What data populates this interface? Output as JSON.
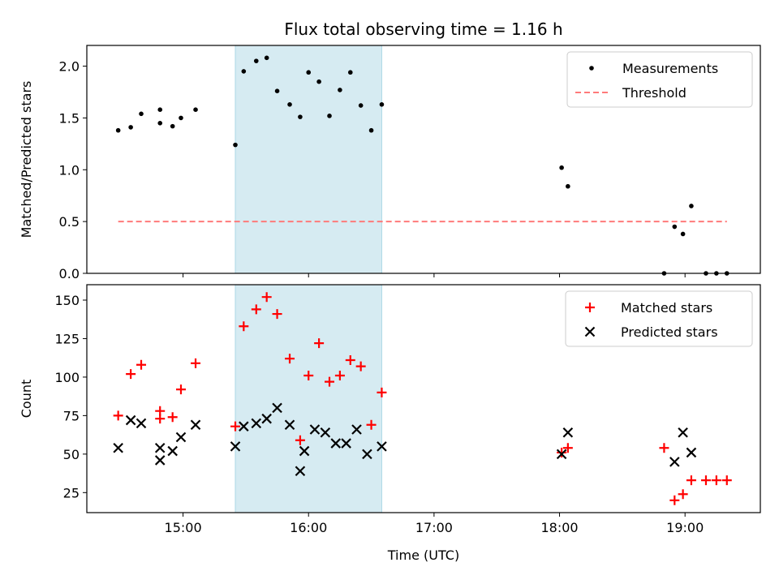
{
  "title": "Flux total observing time = 1.16 h",
  "chart_data": [
    {
      "type": "scatter",
      "ylabel": "Matched/Predicted stars",
      "ylim": [
        0,
        2.2
      ],
      "yticks": [
        "0.0",
        "0.5",
        "1.0",
        "1.5",
        "2.0"
      ],
      "xlim": [
        "14:14",
        "19:36"
      ],
      "highlight_span": {
        "x0": "15:25",
        "x1": "16:35",
        "color": "#add8e6"
      },
      "legend": {
        "placement": "top-right",
        "entries": [
          "Measurements",
          "Threshold"
        ]
      },
      "series": [
        {
          "name": "Measurements",
          "marker": "dot",
          "color": "#000000",
          "x": [
            "14:29",
            "14:35",
            "14:40",
            "14:49",
            "14:49",
            "14:55",
            "14:59",
            "15:06",
            "15:25",
            "15:29",
            "15:35",
            "15:40",
            "15:45",
            "15:51",
            "15:56",
            "16:00",
            "16:05",
            "16:10",
            "16:15",
            "16:20",
            "16:25",
            "16:30",
            "16:35",
            "18:01",
            "18:04",
            "18:50",
            "18:55",
            "18:59",
            "19:03",
            "19:10",
            "19:15",
            "19:20"
          ],
          "y": [
            1.38,
            1.41,
            1.54,
            1.58,
            1.45,
            1.42,
            1.5,
            1.58,
            1.24,
            1.95,
            2.05,
            2.08,
            1.76,
            1.63,
            1.51,
            1.94,
            1.85,
            1.52,
            1.77,
            1.94,
            1.62,
            1.38,
            1.63,
            1.02,
            0.84,
            0.0,
            0.45,
            0.38,
            0.65,
            0.0,
            0.0,
            0.0
          ]
        },
        {
          "name": "Threshold",
          "style": "dashed",
          "color": "#ff7a7a",
          "x": [
            "14:29",
            "19:20"
          ],
          "y": [
            0.5,
            0.5
          ]
        }
      ]
    },
    {
      "type": "scatter",
      "ylabel": "Count",
      "xlabel": "Time (UTC)",
      "ylim": [
        12,
        160
      ],
      "yticks": [
        "25",
        "50",
        "75",
        "100",
        "125",
        "150"
      ],
      "xlim": [
        "14:14",
        "19:36"
      ],
      "xticks": [
        "15:00",
        "16:00",
        "17:00",
        "18:00",
        "19:00"
      ],
      "highlight_span": {
        "x0": "15:25",
        "x1": "16:35",
        "color": "#add8e6"
      },
      "legend": {
        "placement": "top-right",
        "entries": [
          "Matched stars",
          "Predicted stars"
        ]
      },
      "series": [
        {
          "name": "Matched stars",
          "marker": "plus",
          "color": "#ff0000",
          "x": [
            "14:29",
            "14:35",
            "14:40",
            "14:49",
            "14:49",
            "14:55",
            "14:59",
            "15:06",
            "15:25",
            "15:29",
            "15:35",
            "15:40",
            "15:45",
            "15:51",
            "15:56",
            "16:00",
            "16:05",
            "16:10",
            "16:15",
            "16:20",
            "16:25",
            "16:30",
            "16:35",
            "18:01",
            "18:04",
            "18:50",
            "18:55",
            "18:59",
            "19:03",
            "19:10",
            "19:15",
            "19:20"
          ],
          "y": [
            75,
            102,
            108,
            73,
            78,
            74,
            92,
            109,
            68,
            133,
            144,
            152,
            141,
            112,
            59,
            101,
            122,
            97,
            101,
            111,
            107,
            69,
            90,
            51,
            54,
            54,
            20,
            24,
            33,
            33,
            33,
            33
          ]
        },
        {
          "name": "Predicted stars",
          "marker": "x",
          "color": "#000000",
          "x": [
            "14:29",
            "14:35",
            "14:40",
            "14:49",
            "14:49",
            "14:55",
            "14:59",
            "15:06",
            "15:25",
            "15:29",
            "15:35",
            "15:40",
            "15:45",
            "15:51",
            "15:56",
            "15:58",
            "16:03",
            "16:08",
            "16:13",
            "16:18",
            "16:23",
            "16:28",
            "16:35",
            "18:01",
            "18:04",
            "18:55",
            "18:59",
            "19:03"
          ],
          "y": [
            54,
            72,
            70,
            46,
            54,
            52,
            61,
            69,
            55,
            68,
            70,
            73,
            80,
            69,
            39,
            52,
            66,
            64,
            57,
            57,
            66,
            50,
            55,
            50,
            64,
            45,
            64,
            51
          ]
        }
      ]
    }
  ]
}
